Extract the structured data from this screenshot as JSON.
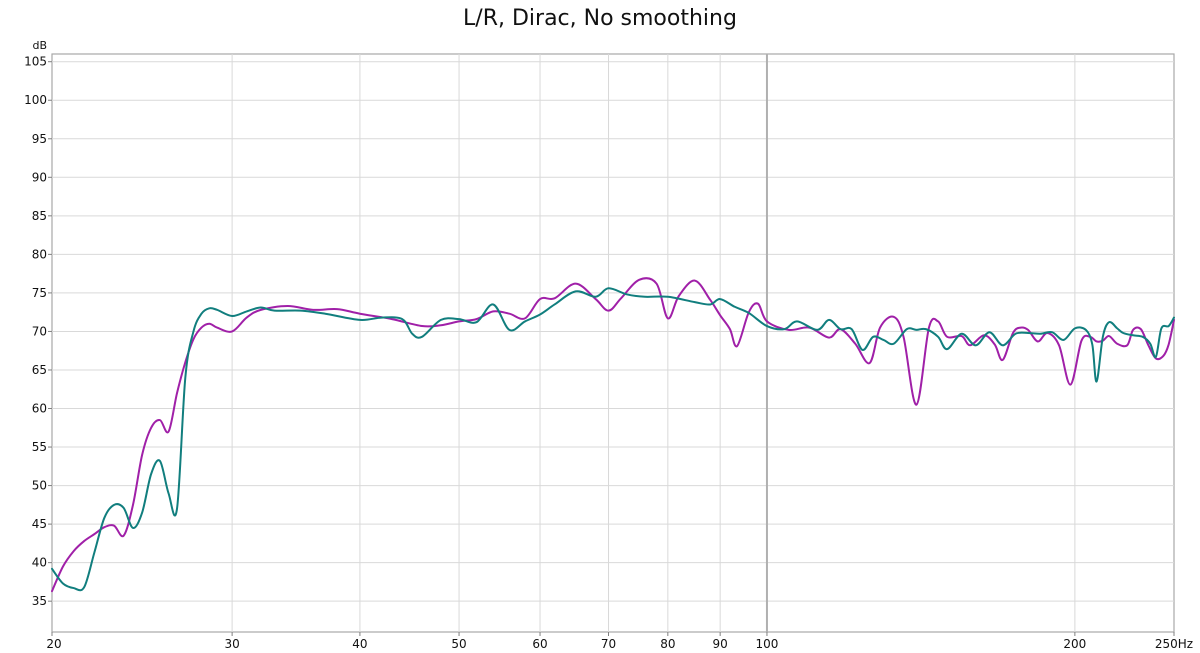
{
  "chart_data": {
    "type": "line",
    "title": "L/R, Dirac, No smoothing",
    "ylabel": "dB",
    "xunit": "Hz",
    "x_scale": "log",
    "xlim": [
      20,
      250
    ],
    "ylim": [
      31,
      106
    ],
    "grid": true,
    "legend": "none",
    "y_ticks": [
      "105",
      "100",
      "95",
      "90",
      "85",
      "80",
      "75",
      "70",
      "65",
      "60",
      "55",
      "50",
      "45",
      "40",
      "35"
    ],
    "x_ticks": [
      "20",
      "30",
      "40",
      "50",
      "60",
      "70",
      "80",
      "90",
      "100",
      "200",
      "250Hz"
    ],
    "series": [
      {
        "color": "#a020a8",
        "x": [
          20,
          20.5,
          21,
          21.5,
          22,
          22.5,
          23,
          23.5,
          24,
          24.5,
          25,
          25.5,
          26,
          26.5,
          27,
          27.5,
          28,
          28.5,
          29,
          30,
          31,
          32,
          34,
          36,
          38,
          40,
          43,
          46,
          48,
          50,
          52,
          54,
          56,
          58,
          60,
          62,
          65,
          68,
          70,
          72,
          75,
          78,
          80,
          82,
          85,
          88,
          90,
          92,
          93.5,
          96,
          98,
          100,
          105,
          110,
          115,
          118,
          122,
          126,
          129,
          133,
          136,
          140,
          144,
          147,
          150,
          155,
          158,
          163,
          167,
          170,
          174,
          177,
          180,
          184,
          188,
          193,
          198,
          203,
          207,
          210,
          213,
          216,
          220,
          225,
          228,
          232,
          236,
          240,
          244,
          247,
          250
        ],
        "y": [
          36.3,
          39.5,
          41.5,
          42.8,
          43.7,
          44.6,
          44.8,
          43.5,
          47.5,
          54,
          57.5,
          58.5,
          57,
          62,
          66,
          69,
          70.5,
          71,
          70.5,
          70,
          71.8,
          72.8,
          73.3,
          72.8,
          72.9,
          72.3,
          71.6,
          70.7,
          70.8,
          71.3,
          71.6,
          72.6,
          72.3,
          71.7,
          74.2,
          74.3,
          76.2,
          74.2,
          72.7,
          74.3,
          76.7,
          76.2,
          71.7,
          74.6,
          76.6,
          74.1,
          72.1,
          70.3,
          68.1,
          72.5,
          73.6,
          71.3,
          70.2,
          70.5,
          69.2,
          70.3,
          68.4,
          65.9,
          70.5,
          71.9,
          69.3,
          60.5,
          70.5,
          71.3,
          69.3,
          69.4,
          68.2,
          69.5,
          68.3,
          66.3,
          69.8,
          70.5,
          70.2,
          68.7,
          69.8,
          68.2,
          63.1,
          68.8,
          69.3,
          68.7,
          68.8,
          69.4,
          68.4,
          68.2,
          70.2,
          70.3,
          68.2,
          66.5,
          66.8,
          68.3,
          71.5
        ]
      },
      {
        "color": "#117e7e",
        "x": [
          20,
          20.5,
          21,
          21.5,
          22,
          22.5,
          23,
          23.5,
          24,
          24.5,
          25,
          25.5,
          26,
          26.5,
          27,
          27.5,
          28,
          28.5,
          29,
          30,
          31,
          32,
          33,
          35,
          37,
          40,
          42,
          44,
          45,
          46,
          48,
          50,
          52,
          54,
          56,
          58,
          60,
          62,
          65,
          68,
          70,
          73,
          76,
          80,
          85,
          88,
          90,
          93,
          96,
          100,
          104,
          107,
          112,
          115,
          118,
          121,
          124,
          127,
          130,
          133,
          137,
          140,
          143,
          147,
          150,
          155,
          160,
          165,
          170,
          175,
          180,
          185,
          190,
          195,
          200,
          205,
          208,
          210,
          213,
          216,
          220,
          223,
          228,
          233,
          237,
          240,
          243,
          247,
          250
        ],
        "y": [
          39.2,
          37.3,
          36.7,
          36.8,
          41.3,
          45.8,
          47.5,
          47.1,
          44.5,
          46.5,
          51.5,
          53.2,
          49,
          47,
          64,
          70,
          72.3,
          73,
          72.8,
          72,
          72.6,
          73.1,
          72.7,
          72.7,
          72.3,
          71.5,
          71.8,
          71.6,
          69.7,
          69.3,
          71.5,
          71.6,
          71.2,
          73.5,
          70.2,
          71.3,
          72.2,
          73.5,
          75.2,
          74.5,
          75.6,
          74.8,
          74.5,
          74.5,
          73.8,
          73.5,
          74.2,
          73.2,
          72.4,
          70.7,
          70.3,
          71.3,
          70.2,
          71.5,
          70.3,
          70.3,
          67.6,
          69.3,
          68.9,
          68.4,
          70.3,
          70.2,
          70.3,
          69.3,
          67.7,
          69.7,
          68.2,
          69.9,
          68.2,
          69.7,
          69.8,
          69.7,
          69.9,
          68.9,
          70.4,
          70.2,
          68.3,
          63.5,
          69.3,
          71.2,
          70.4,
          69.8,
          69.5,
          69.3,
          68.4,
          66.7,
          70.4,
          70.7,
          71.8
        ]
      }
    ]
  }
}
